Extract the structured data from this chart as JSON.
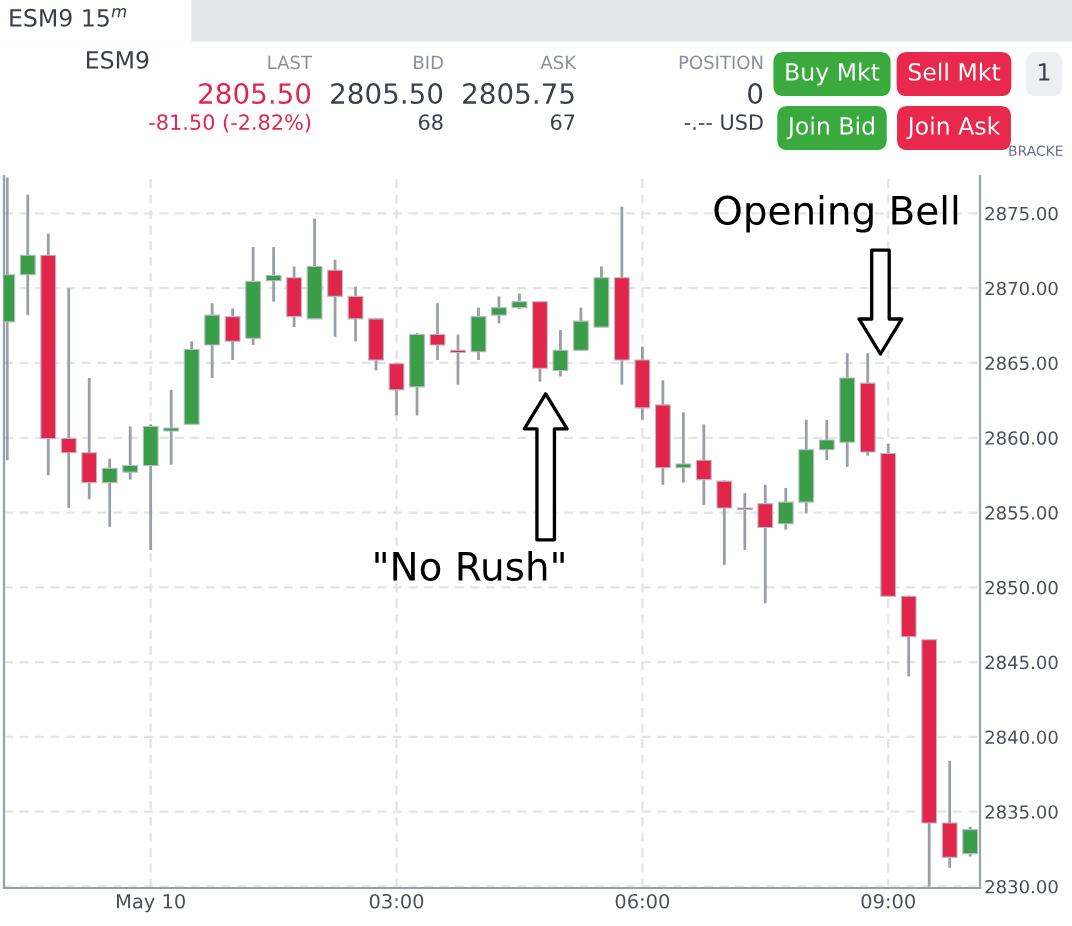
{
  "chart_data": {
    "type": "candlestick",
    "x": [
      -1.75,
      -1.5,
      -1.25,
      -1,
      -0.75,
      -0.5,
      -0.25,
      0,
      0.25,
      0.5,
      0.75,
      1,
      1.25,
      1.5,
      1.75,
      2,
      2.25,
      2.5,
      2.75,
      3,
      3.25,
      3.5,
      3.75,
      4,
      4.25,
      4.5,
      4.75,
      5,
      5.25,
      5.5,
      5.75,
      6,
      6.25,
      6.5,
      6.75,
      7,
      7.25,
      7.5,
      7.75,
      8,
      8.25,
      8.5,
      8.75,
      9,
      9.25,
      9.5,
      9.75,
      10
    ],
    "ohlc": [
      [
        2867.75,
        2877.4,
        2858.5,
        2870.9
      ],
      [
        2870.9,
        2876.25,
        2868.2,
        2872.2
      ],
      [
        2872.2,
        2873.65,
        2857.5,
        2859.95
      ],
      [
        2859.95,
        2870.0,
        2855.3,
        2859.0
      ],
      [
        2859.0,
        2864.0,
        2855.9,
        2857.0
      ],
      [
        2857.0,
        2858.6,
        2854.05,
        2857.95
      ],
      [
        2857.7,
        2860.75,
        2857.2,
        2858.15
      ],
      [
        2858.15,
        2860.9,
        2852.5,
        2860.75
      ],
      [
        2860.45,
        2863.2,
        2858.2,
        2860.65
      ],
      [
        2860.9,
        2866.45,
        2860.9,
        2865.9
      ],
      [
        2866.2,
        2869.0,
        2864.0,
        2868.2
      ],
      [
        2868.1,
        2868.65,
        2865.2,
        2866.45
      ],
      [
        2866.65,
        2872.75,
        2866.2,
        2870.45
      ],
      [
        2870.5,
        2872.75,
        2869.1,
        2870.85
      ],
      [
        2870.7,
        2871.45,
        2867.4,
        2868.1
      ],
      [
        2867.95,
        2874.65,
        2867.95,
        2871.45
      ],
      [
        2871.2,
        2871.9,
        2866.75,
        2869.45
      ],
      [
        2869.45,
        2870.1,
        2866.45,
        2867.95
      ],
      [
        2867.95,
        2868.0,
        2864.5,
        2865.2
      ],
      [
        2864.95,
        2865.0,
        2861.5,
        2863.2
      ],
      [
        2863.4,
        2867.0,
        2861.5,
        2866.9
      ],
      [
        2866.9,
        2869.0,
        2865.2,
        2866.2
      ],
      [
        2865.85,
        2866.9,
        2863.55,
        2865.7
      ],
      [
        2865.75,
        2868.7,
        2865.2,
        2868.1
      ],
      [
        2868.2,
        2869.45,
        2867.65,
        2868.7
      ],
      [
        2868.7,
        2869.65,
        2868.6,
        2869.1
      ],
      [
        2869.1,
        2869.15,
        2863.75,
        2864.65
      ],
      [
        2864.5,
        2867.2,
        2864.1,
        2865.85
      ],
      [
        2865.85,
        2868.7,
        2865.8,
        2867.8
      ],
      [
        2867.4,
        2871.45,
        2867.4,
        2870.7
      ],
      [
        2870.7,
        2875.45,
        2863.55,
        2865.2
      ],
      [
        2865.2,
        2866.1,
        2861.2,
        2862.0
      ],
      [
        2862.2,
        2863.85,
        2856.85,
        2858.0
      ],
      [
        2858.0,
        2861.7,
        2857.0,
        2858.25
      ],
      [
        2858.5,
        2860.9,
        2855.5,
        2857.2
      ],
      [
        2857.1,
        2857.15,
        2851.5,
        2855.3
      ],
      [
        2855.3,
        2856.3,
        2852.5,
        2855.2
      ],
      [
        2855.6,
        2856.85,
        2848.95,
        2854.0
      ],
      [
        2854.25,
        2856.65,
        2853.85,
        2855.7
      ],
      [
        2855.7,
        2861.2,
        2854.95,
        2859.2
      ],
      [
        2859.2,
        2861.2,
        2858.5,
        2859.85
      ],
      [
        2859.7,
        2865.65,
        2858.05,
        2864.0
      ],
      [
        2863.65,
        2865.65,
        2858.8,
        2859.05
      ],
      [
        2858.95,
        2859.6,
        2849.4,
        2849.4
      ],
      [
        2849.4,
        2849.45,
        2844.05,
        2846.7
      ],
      [
        2846.5,
        2846.5,
        2830.0,
        2834.25
      ],
      [
        2834.25,
        2838.4,
        2831.25,
        2831.95
      ],
      [
        2832.2,
        2834.0,
        2832.0,
        2833.8
      ]
    ],
    "colors": [
      "#3a9d48",
      "#3a9d48",
      "#e2254a",
      "#e2254a",
      "#e2254a",
      "#3a9d48",
      "#3a9d48",
      "#3a9d48",
      "#3a9d48",
      "#3a9d48",
      "#3a9d48",
      "#e2254a",
      "#3a9d48",
      "#3a9d48",
      "#e2254a",
      "#3a9d48",
      "#e2254a",
      "#e2254a",
      "#e2254a",
      "#e2254a",
      "#3a9d48",
      "#e2254a",
      "#e2254a",
      "#3a9d48",
      "#3a9d48",
      "#3a9d48",
      "#e2254a",
      "#3a9d48",
      "#3a9d48",
      "#3a9d48",
      "#e2254a",
      "#e2254a",
      "#e2254a",
      "#3a9d48",
      "#e2254a",
      "#e2254a",
      "#e2254a",
      "#e2254a",
      "#3a9d48",
      "#3a9d48",
      "#3a9d48",
      "#3a9d48",
      "#e2254a",
      "#e2254a",
      "#e2254a",
      "#e2254a",
      "#e2254a",
      "#3a9d48"
    ],
    "xlim": [
      -1.79,
      10.12
    ],
    "ylim": [
      2829.9,
      2877.5
    ],
    "xticks": [
      {
        "value": 0,
        "label": "May 10"
      },
      {
        "value": 3,
        "label": "03:00"
      },
      {
        "value": 6,
        "label": "06:00"
      },
      {
        "value": 9,
        "label": "09:00"
      }
    ],
    "yticks": [
      {
        "value": 2830,
        "label": "2830.00"
      },
      {
        "value": 2835,
        "label": "2835.00"
      },
      {
        "value": 2840,
        "label": "2840.00"
      },
      {
        "value": 2845,
        "label": "2845.00"
      },
      {
        "value": 2850,
        "label": "2850.00"
      },
      {
        "value": 2855,
        "label": "2855.00"
      },
      {
        "value": 2860,
        "label": "2860.00"
      },
      {
        "value": 2865,
        "label": "2865.00"
      },
      {
        "value": 2870,
        "label": "2870.00"
      },
      {
        "value": 2875,
        "label": "2875.00"
      }
    ],
    "grid": true,
    "annotations": [
      "\"No Rush\"",
      "Opening Bell",
      "ESM9 15$^{m}$",
      "ESM9",
      "LAST",
      "2805.50",
      "-81.50 (-2.82%)",
      "BID",
      "2805.50",
      "68",
      "ASK",
      "2805.75",
      "67",
      "POSITION",
      "0",
      "-.-- USD",
      "Buy Mkt",
      "Sell Mkt",
      "Join Bid",
      "Join Ask",
      "1",
      "BRACKE"
    ]
  }
}
